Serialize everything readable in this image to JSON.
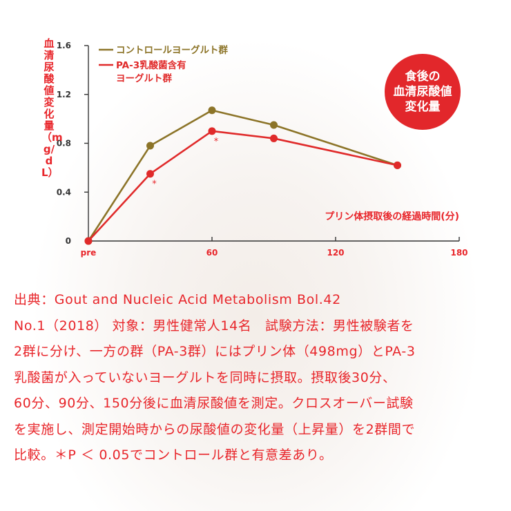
{
  "chart_data": {
    "type": "line",
    "ylabel": "血清尿酸値変化量（mg/dL）",
    "xlabel": "プリン体摂取後の経過時間(分)",
    "x_ticks": [
      {
        "value": 0,
        "label": "pre"
      },
      {
        "value": 60,
        "label": "60"
      },
      {
        "value": 120,
        "label": "120"
      },
      {
        "value": 180,
        "label": "180"
      }
    ],
    "y_ticks": [
      {
        "value": 0,
        "label": "0"
      },
      {
        "value": 0.4,
        "label": "0.4"
      },
      {
        "value": 0.8,
        "label": "0.8"
      },
      {
        "value": 1.2,
        "label": "1.2"
      },
      {
        "value": 1.6,
        "label": "1.6"
      }
    ],
    "xlim": [
      0,
      180
    ],
    "ylim": [
      0,
      1.6
    ],
    "grid": false,
    "legend_position": "top-left",
    "series": [
      {
        "name": "コントロールヨーグルト群",
        "color": "#8c7428",
        "x": [
          0,
          30,
          60,
          90,
          150
        ],
        "y": [
          0,
          0.78,
          1.07,
          0.95,
          0.62
        ]
      },
      {
        "name": "PA-3乳酸菌含有\nヨーグルト群",
        "color": "#e02a2a",
        "x": [
          0,
          30,
          60,
          90,
          150
        ],
        "y": [
          0,
          0.55,
          0.9,
          0.84,
          0.62
        ]
      }
    ],
    "annotations": [
      {
        "text": "*",
        "x": 30,
        "y": 0.55
      },
      {
        "text": "*",
        "x": 60,
        "y": 0.9
      }
    ]
  },
  "badge": {
    "text": "食後の\n血清尿酸値\n変化量"
  },
  "source_lines": [
    "出典：Gout and Nucleic Acid Metabolism Bol.42",
    "No.1（2018） 対象：男性健常人14名　試験方法：男性被験者を",
    "2群に分け、一方の群（PA-3群）にはプリン体（498mg）とPA-3",
    "乳酸菌が入っていないヨーグルトを同時に摂取。摂取後30分、",
    "60分、90分、150分後に血清尿酸値を測定。クロスオーバー試験",
    "を実施し、測定開始時からの尿酸値の変化量（上昇量）を2群間で",
    "比較。＊P ＜ 0.05でコントロール群と有意差あり。"
  ],
  "colors": {
    "accent": "#e8252a",
    "axis": "#333333"
  }
}
